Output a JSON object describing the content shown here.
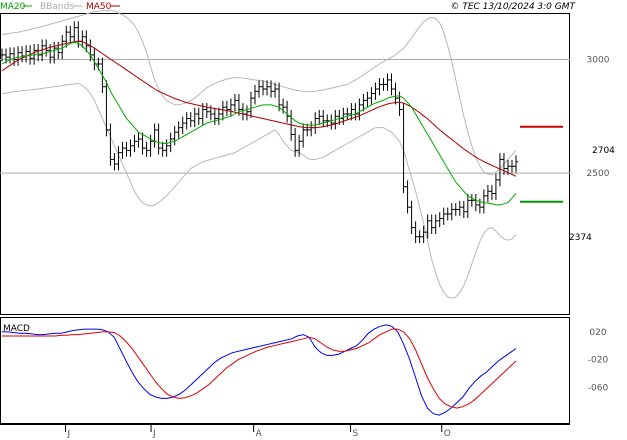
{
  "header": {
    "legend": [
      {
        "label": "MA20",
        "color": "#00a000"
      },
      {
        "label": "BBands",
        "color": "#aaaaaa"
      },
      {
        "label": "MA50",
        "color": "#b00000"
      }
    ],
    "copyright": "© TEC 13/10/2024 3:0 GMT"
  },
  "levels": {
    "resistance": {
      "label": "2704",
      "value": 2704,
      "color": "#cc0000"
    },
    "support": {
      "label": "2374",
      "value": 2374,
      "color": "#009900"
    }
  },
  "macd_label": "MACD",
  "colors": {
    "price": "#000000",
    "ma20": "#00aa00",
    "ma50": "#aa0000",
    "bbands": "#b8b8b8",
    "macd": "#0000ee",
    "signal": "#dd0000",
    "frame": "#000000",
    "grid": "#aaaaaa"
  },
  "chart_data": [
    {
      "type": "ohlc",
      "title": "",
      "ylim": [
        1880,
        3200
      ],
      "yticks": [
        {
          "value": 3000,
          "label": "3000"
        },
        {
          "value": 2500,
          "label": "2500"
        }
      ],
      "hlines": [
        3000,
        2500
      ],
      "xticks": [
        {
          "x": 0.115,
          "label": "J"
        },
        {
          "x": 0.265,
          "label": "J"
        },
        {
          "x": 0.445,
          "label": "A"
        },
        {
          "x": 0.615,
          "label": "S"
        },
        {
          "x": 0.775,
          "label": "O"
        }
      ],
      "close": [
        3020,
        3010,
        3025,
        3000,
        3030,
        3015,
        3035,
        3005,
        3040,
        3020,
        3060,
        3040,
        3010,
        3050,
        3030,
        3080,
        3120,
        3100,
        3140,
        3080,
        3100,
        3060,
        3020,
        2980,
        2980,
        2880,
        2690,
        2560,
        2540,
        2590,
        2610,
        2600,
        2620,
        2640,
        2650,
        2610,
        2600,
        2640,
        2690,
        2610,
        2600,
        2620,
        2650,
        2680,
        2700,
        2720,
        2740,
        2730,
        2760,
        2740,
        2780,
        2770,
        2760,
        2740,
        2760,
        2790,
        2780,
        2800,
        2820,
        2780,
        2760,
        2770,
        2830,
        2860,
        2880,
        2870,
        2880,
        2860,
        2870,
        2800,
        2790,
        2750,
        2670,
        2600,
        2640,
        2690,
        2690,
        2700,
        2740,
        2750,
        2730,
        2730,
        2720,
        2750,
        2740,
        2760,
        2760,
        2780,
        2760,
        2800,
        2820,
        2830,
        2850,
        2870,
        2890,
        2890,
        2910,
        2870,
        2830,
        2780,
        2440,
        2350,
        2260,
        2220,
        2220,
        2240,
        2290,
        2260,
        2290,
        2300,
        2320,
        2320,
        2340,
        2340,
        2350,
        2330,
        2380,
        2380,
        2360,
        2350,
        2400,
        2420,
        2410,
        2470,
        2560,
        2520,
        2530,
        2530,
        2550
      ],
      "ma20": [
        2980,
        2990,
        3000,
        3005,
        3010,
        3012,
        3015,
        3018,
        3020,
        3022,
        3025,
        3030,
        3035,
        3040,
        3045,
        3050,
        3060,
        3070,
        3075,
        3070,
        3060,
        3040,
        3020,
        2990,
        2960,
        2930,
        2900,
        2860,
        2830,
        2800,
        2770,
        2740,
        2720,
        2700,
        2680,
        2670,
        2660,
        2650,
        2640,
        2635,
        2630,
        2630,
        2635,
        2640,
        2650,
        2660,
        2670,
        2680,
        2690,
        2700,
        2710,
        2720,
        2725,
        2730,
        2735,
        2740,
        2745,
        2750,
        2760,
        2770,
        2775,
        2780,
        2785,
        2790,
        2795,
        2800,
        2800,
        2800,
        2795,
        2790,
        2775,
        2760,
        2745,
        2730,
        2720,
        2715,
        2712,
        2710,
        2712,
        2715,
        2720,
        2725,
        2730,
        2735,
        2740,
        2745,
        2750,
        2755,
        2760,
        2770,
        2780,
        2790,
        2800,
        2808,
        2815,
        2820,
        2830,
        2835,
        2838,
        2840,
        2830,
        2810,
        2790,
        2760,
        2730,
        2700,
        2670,
        2640,
        2610,
        2580,
        2550,
        2520,
        2490,
        2460,
        2440,
        2420,
        2400,
        2390,
        2380,
        2375,
        2370,
        2368,
        2365,
        2360,
        2360,
        2365,
        2370,
        2390,
        2410
      ],
      "ma50": [
        2950,
        2962,
        2974,
        2986,
        2998,
        3006,
        3014,
        3022,
        3030,
        3036,
        3042,
        3048,
        3054,
        3058,
        3062,
        3066,
        3070,
        3074,
        3078,
        3080,
        3078,
        3070,
        3060,
        3050,
        3038,
        3026,
        3014,
        3002,
        2990,
        2978,
        2966,
        2954,
        2942,
        2930,
        2918,
        2906,
        2894,
        2882,
        2870,
        2860,
        2852,
        2844,
        2836,
        2828,
        2822,
        2816,
        2810,
        2806,
        2802,
        2798,
        2794,
        2790,
        2787,
        2784,
        2781,
        2778,
        2775,
        2772,
        2768,
        2764,
        2760,
        2756,
        2752,
        2748,
        2744,
        2740,
        2736,
        2732,
        2728,
        2724,
        2720,
        2716,
        2712,
        2708,
        2704,
        2702,
        2700,
        2700,
        2700,
        2702,
        2704,
        2708,
        2712,
        2716,
        2722,
        2728,
        2734,
        2740,
        2746,
        2752,
        2760,
        2768,
        2776,
        2784,
        2792,
        2798,
        2804,
        2808,
        2810,
        2812,
        2808,
        2800,
        2790,
        2778,
        2766,
        2752,
        2738,
        2722,
        2706,
        2690,
        2676,
        2662,
        2648,
        2634,
        2620,
        2606,
        2594,
        2582,
        2570,
        2560,
        2550,
        2542,
        2534,
        2526,
        2518,
        2510,
        2502,
        2494,
        2486
      ],
      "bb_upper": [
        3110,
        3112,
        3115,
        3118,
        3120,
        3124,
        3128,
        3132,
        3136,
        3140,
        3145,
        3150,
        3155,
        3160,
        3165,
        3170,
        3175,
        3180,
        3185,
        3190,
        3195,
        3200,
        3205,
        3210,
        3212,
        3214,
        3215,
        3215,
        3213,
        3205,
        3195,
        3185,
        3170,
        3150,
        3120,
        3080,
        3030,
        2970,
        2910,
        2870,
        2840,
        2820,
        2810,
        2800,
        2800,
        2805,
        2810,
        2820,
        2830,
        2845,
        2860,
        2875,
        2885,
        2895,
        2902,
        2908,
        2914,
        2918,
        2920,
        2920,
        2918,
        2916,
        2912,
        2910,
        2908,
        2905,
        2900,
        2895,
        2890,
        2885,
        2880,
        2875,
        2870,
        2865,
        2862,
        2860,
        2858,
        2858,
        2860,
        2862,
        2866,
        2870,
        2874,
        2878,
        2882,
        2886,
        2890,
        2900,
        2910,
        2920,
        2932,
        2944,
        2956,
        2968,
        2980,
        2990,
        3000,
        3010,
        3020,
        3035,
        3050,
        3070,
        3095,
        3120,
        3145,
        3165,
        3180,
        3185,
        3180,
        3160,
        3120,
        3060,
        2990,
        2910,
        2830,
        2750,
        2680,
        2620,
        2570,
        2530,
        2505,
        2495,
        2495,
        2505,
        2520,
        2540,
        2560,
        2580,
        2600
      ],
      "bb_lower": [
        2850,
        2852,
        2855,
        2858,
        2860,
        2862,
        2864,
        2866,
        2868,
        2870,
        2872,
        2875,
        2878,
        2880,
        2882,
        2885,
        2888,
        2890,
        2892,
        2895,
        2885,
        2870,
        2850,
        2820,
        2780,
        2740,
        2700,
        2660,
        2620,
        2580,
        2540,
        2500,
        2460,
        2420,
        2390,
        2370,
        2360,
        2355,
        2360,
        2370,
        2385,
        2400,
        2420,
        2440,
        2460,
        2480,
        2500,
        2520,
        2530,
        2540,
        2550,
        2555,
        2560,
        2565,
        2570,
        2575,
        2580,
        2585,
        2590,
        2600,
        2610,
        2620,
        2630,
        2640,
        2650,
        2660,
        2670,
        2680,
        2690,
        2670,
        2640,
        2620,
        2600,
        2595,
        2590,
        2580,
        2565,
        2560,
        2560,
        2565,
        2570,
        2580,
        2590,
        2600,
        2610,
        2620,
        2630,
        2640,
        2650,
        2660,
        2670,
        2680,
        2690,
        2700,
        2700,
        2700,
        2690,
        2680,
        2660,
        2640,
        2600,
        2540,
        2480,
        2420,
        2350,
        2280,
        2200,
        2120,
        2060,
        2010,
        1975,
        1955,
        1950,
        1955,
        1975,
        2005,
        2050,
        2100,
        2150,
        2200,
        2235,
        2255,
        2260,
        2245,
        2225,
        2210,
        2205,
        2210,
        2230
      ]
    },
    {
      "type": "line",
      "title": "",
      "ylim": [
        -110,
        40
      ],
      "yticks": [
        {
          "value": 20,
          "label": "020"
        },
        {
          "value": -20,
          "label": "-020"
        },
        {
          "value": -60,
          "label": "-060"
        }
      ],
      "xticks": [
        {
          "x": 0.115,
          "label": "J"
        },
        {
          "x": 0.265,
          "label": "J"
        },
        {
          "x": 0.445,
          "label": "A"
        },
        {
          "x": 0.615,
          "label": "S"
        },
        {
          "x": 0.775,
          "label": "O"
        }
      ],
      "series": [
        {
          "name": "",
          "color": "#0000ee",
          "values": [
            20,
            20,
            19,
            18,
            18,
            17,
            16,
            16,
            17,
            18,
            18,
            20,
            22,
            23,
            24,
            24,
            24,
            23,
            20,
            12,
            -5,
            -22,
            -38,
            -52,
            -62,
            -70,
            -74,
            -76,
            -76,
            -74,
            -70,
            -64,
            -56,
            -48,
            -40,
            -32,
            -24,
            -18,
            -14,
            -10,
            -8,
            -6,
            -4,
            -2,
            0,
            2,
            4,
            6,
            8,
            10,
            14,
            16,
            12,
            -2,
            -10,
            -14,
            -14,
            -12,
            -8,
            -4,
            0,
            8,
            18,
            24,
            28,
            30,
            28,
            20,
            2,
            -20,
            -46,
            -72,
            -90,
            -98,
            -100,
            -96,
            -90,
            -82,
            -74,
            -62,
            -52,
            -44,
            -38,
            -30,
            -22,
            -16,
            -10,
            -4
          ]
        },
        {
          "name": "",
          "color": "#dd0000",
          "values": [
            14,
            14,
            14,
            14,
            14,
            14,
            14,
            14,
            14,
            14,
            15,
            15,
            16,
            16,
            17,
            18,
            19,
            20,
            20,
            19,
            14,
            6,
            -4,
            -16,
            -28,
            -40,
            -52,
            -62,
            -70,
            -74,
            -76,
            -75,
            -72,
            -68,
            -62,
            -56,
            -48,
            -40,
            -32,
            -26,
            -20,
            -16,
            -12,
            -8,
            -5,
            -2,
            0,
            2,
            4,
            6,
            8,
            10,
            12,
            10,
            4,
            -2,
            -6,
            -8,
            -8,
            -6,
            -4,
            0,
            4,
            10,
            16,
            20,
            24,
            24,
            20,
            10,
            -6,
            -26,
            -46,
            -62,
            -76,
            -84,
            -88,
            -90,
            -88,
            -84,
            -78,
            -70,
            -62,
            -54,
            -46,
            -38,
            -30,
            -22
          ]
        }
      ]
    }
  ]
}
